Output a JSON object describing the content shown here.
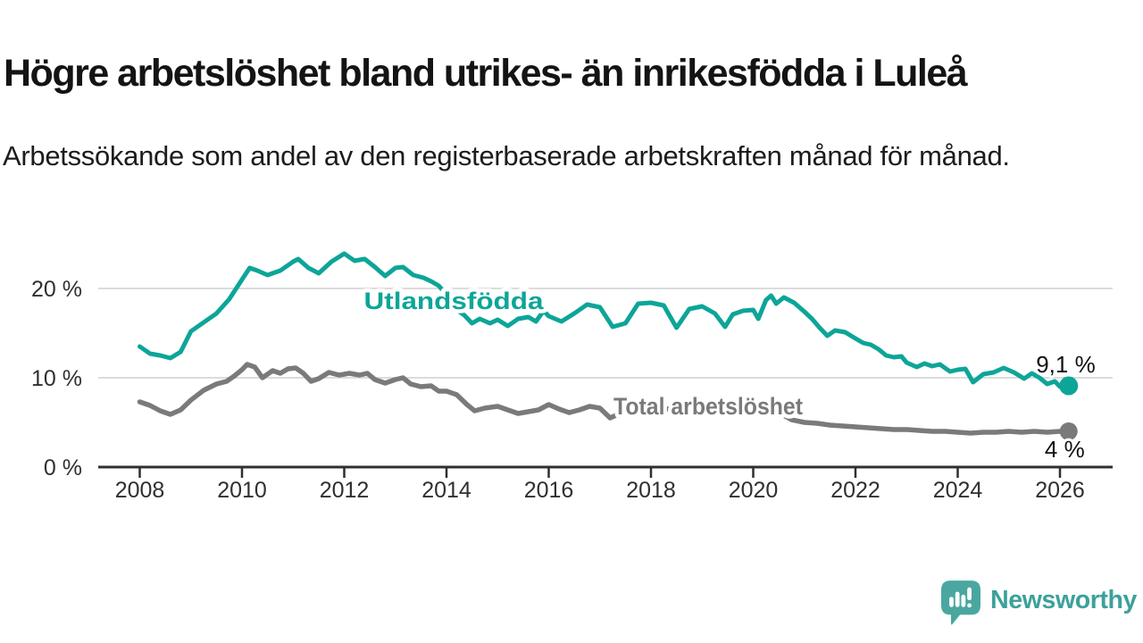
{
  "header": {
    "title": "Högre arbetslöshet bland utrikes- än inrikesfödda i Luleå",
    "subtitle": "Arbetssökande som andel av den registerbaserade arbetskraften månad för månad."
  },
  "chart_data": {
    "type": "line",
    "title": "Högre arbetslöshet bland utrikes- än inrikesfödda i Luleå",
    "subtitle": "Arbetssökande som andel av den registerbaserade arbetskraften månad för månad.",
    "x_unit": "year (monthly observations)",
    "y_unit": "percent of registered labour force",
    "xlim": [
      2007.2,
      2027.0
    ],
    "ylim": [
      0,
      25
    ],
    "grid": "horizontal",
    "legend_position": "inline-labels",
    "axis_color": "#2f2f2f",
    "grid_color": "#dcdcdc",
    "xticks": [
      2008,
      2010,
      2012,
      2014,
      2016,
      2018,
      2020,
      2022,
      2024,
      2026
    ],
    "yticks": [
      {
        "value": 0,
        "label": "0 %"
      },
      {
        "value": 10,
        "label": "10 %"
      },
      {
        "value": 20,
        "label": "20 %"
      }
    ],
    "series": [
      {
        "name": "Utlandsfödda",
        "color": "#0da598",
        "end_label": "9,1 %",
        "end_value": 9.1,
        "points": [
          [
            2008,
            13.5
          ],
          [
            2008.2,
            12.7
          ],
          [
            2008.4,
            12.5
          ],
          [
            2008.6,
            12.2
          ],
          [
            2008.8,
            12.9
          ],
          [
            2009,
            15.2
          ],
          [
            2009.25,
            16.2
          ],
          [
            2009.5,
            17.2
          ],
          [
            2009.75,
            18.8
          ],
          [
            2010,
            21
          ],
          [
            2010.15,
            22.3
          ],
          [
            2010.3,
            22
          ],
          [
            2010.5,
            21.5
          ],
          [
            2010.75,
            22
          ],
          [
            2011,
            23
          ],
          [
            2011.1,
            23.3
          ],
          [
            2011.3,
            22.3
          ],
          [
            2011.5,
            21.7
          ],
          [
            2011.75,
            23
          ],
          [
            2012,
            23.9
          ],
          [
            2012.2,
            23.1
          ],
          [
            2012.4,
            23.3
          ],
          [
            2012.6,
            22.4
          ],
          [
            2012.8,
            21.4
          ],
          [
            2013,
            22.3
          ],
          [
            2013.15,
            22.4
          ],
          [
            2013.35,
            21.5
          ],
          [
            2013.55,
            21.2
          ],
          [
            2013.7,
            20.8
          ],
          [
            2013.85,
            20.3
          ],
          [
            2014,
            19.3
          ],
          [
            2014.2,
            17.6
          ],
          [
            2014.35,
            17
          ],
          [
            2014.5,
            16.1
          ],
          [
            2014.65,
            16.6
          ],
          [
            2014.85,
            16.1
          ],
          [
            2015,
            16.5
          ],
          [
            2015.2,
            15.8
          ],
          [
            2015.4,
            16.6
          ],
          [
            2015.6,
            16.8
          ],
          [
            2015.75,
            16.3
          ],
          [
            2015.9,
            17.5
          ],
          [
            2016,
            16.9
          ],
          [
            2016.25,
            16.3
          ],
          [
            2016.5,
            17.2
          ],
          [
            2016.75,
            18.2
          ],
          [
            2017,
            17.9
          ],
          [
            2017.25,
            15.7
          ],
          [
            2017.5,
            16.1
          ],
          [
            2017.75,
            18.3
          ],
          [
            2018,
            18.4
          ],
          [
            2018.25,
            18.1
          ],
          [
            2018.5,
            15.6
          ],
          [
            2018.75,
            17.7
          ],
          [
            2019,
            18
          ],
          [
            2019.25,
            17.2
          ],
          [
            2019.45,
            15.7
          ],
          [
            2019.6,
            17.1
          ],
          [
            2019.8,
            17.5
          ],
          [
            2020,
            17.6
          ],
          [
            2020.1,
            16.6
          ],
          [
            2020.25,
            18.7
          ],
          [
            2020.35,
            19.2
          ],
          [
            2020.45,
            18.3
          ],
          [
            2020.6,
            19
          ],
          [
            2020.8,
            18.4
          ],
          [
            2021,
            17.4
          ],
          [
            2021.15,
            16.6
          ],
          [
            2021.3,
            15.6
          ],
          [
            2021.45,
            14.7
          ],
          [
            2021.6,
            15.3
          ],
          [
            2021.8,
            15.1
          ],
          [
            2022,
            14.4
          ],
          [
            2022.15,
            13.9
          ],
          [
            2022.3,
            13.7
          ],
          [
            2022.45,
            13.2
          ],
          [
            2022.6,
            12.5
          ],
          [
            2022.75,
            12.3
          ],
          [
            2022.9,
            12.4
          ],
          [
            2023,
            11.7
          ],
          [
            2023.2,
            11.2
          ],
          [
            2023.35,
            11.6
          ],
          [
            2023.5,
            11.3
          ],
          [
            2023.65,
            11.5
          ],
          [
            2023.85,
            10.7
          ],
          [
            2024,
            10.9
          ],
          [
            2024.15,
            11
          ],
          [
            2024.3,
            9.5
          ],
          [
            2024.5,
            10.4
          ],
          [
            2024.7,
            10.6
          ],
          [
            2024.9,
            11.1
          ],
          [
            2025.1,
            10.6
          ],
          [
            2025.3,
            9.9
          ],
          [
            2025.45,
            10.5
          ],
          [
            2025.6,
            10
          ],
          [
            2025.75,
            9.3
          ],
          [
            2025.9,
            9.6
          ],
          [
            2026,
            9
          ],
          [
            2026.17,
            9.1
          ]
        ]
      },
      {
        "name": "Total arbetslöshet",
        "color": "#7a7a7a",
        "end_label": "4 %",
        "end_value": 4.0,
        "points": [
          [
            2008,
            7.3
          ],
          [
            2008.2,
            6.9
          ],
          [
            2008.4,
            6.3
          ],
          [
            2008.6,
            5.9
          ],
          [
            2008.8,
            6.4
          ],
          [
            2009,
            7.5
          ],
          [
            2009.25,
            8.6
          ],
          [
            2009.5,
            9.3
          ],
          [
            2009.7,
            9.6
          ],
          [
            2009.85,
            10.2
          ],
          [
            2010,
            10.9
          ],
          [
            2010.1,
            11.5
          ],
          [
            2010.25,
            11.2
          ],
          [
            2010.4,
            10
          ],
          [
            2010.6,
            10.8
          ],
          [
            2010.75,
            10.5
          ],
          [
            2010.9,
            11
          ],
          [
            2011.05,
            11.1
          ],
          [
            2011.2,
            10.5
          ],
          [
            2011.35,
            9.6
          ],
          [
            2011.5,
            9.9
          ],
          [
            2011.7,
            10.6
          ],
          [
            2011.9,
            10.3
          ],
          [
            2012.1,
            10.5
          ],
          [
            2012.3,
            10.3
          ],
          [
            2012.45,
            10.5
          ],
          [
            2012.6,
            9.8
          ],
          [
            2012.8,
            9.4
          ],
          [
            2013,
            9.8
          ],
          [
            2013.15,
            10
          ],
          [
            2013.3,
            9.3
          ],
          [
            2013.5,
            9
          ],
          [
            2013.7,
            9.1
          ],
          [
            2013.85,
            8.5
          ],
          [
            2014,
            8.5
          ],
          [
            2014.2,
            8.1
          ],
          [
            2014.4,
            7
          ],
          [
            2014.55,
            6.3
          ],
          [
            2014.75,
            6.6
          ],
          [
            2015,
            6.8
          ],
          [
            2015.2,
            6.4
          ],
          [
            2015.4,
            6
          ],
          [
            2015.6,
            6.2
          ],
          [
            2015.8,
            6.4
          ],
          [
            2016,
            7
          ],
          [
            2016.2,
            6.5
          ],
          [
            2016.4,
            6.1
          ],
          [
            2016.6,
            6.4
          ],
          [
            2016.8,
            6.8
          ],
          [
            2017,
            6.6
          ],
          [
            2017.2,
            5.5
          ],
          [
            2017.4,
            6
          ],
          [
            2017.6,
            6.4
          ],
          [
            2017.8,
            6.6
          ],
          [
            2018,
            6.4
          ],
          [
            2018.25,
            6.6
          ],
          [
            2018.5,
            6.3
          ],
          [
            2018.75,
            6.1
          ],
          [
            2019,
            6.3
          ],
          [
            2019.25,
            6.4
          ],
          [
            2019.5,
            6.1
          ],
          [
            2019.75,
            6
          ],
          [
            2020,
            6.2
          ],
          [
            2020.25,
            6.6
          ],
          [
            2020.5,
            6.1
          ],
          [
            2020.75,
            5.3
          ],
          [
            2021,
            5
          ],
          [
            2021.25,
            4.9
          ],
          [
            2021.5,
            4.7
          ],
          [
            2021.75,
            4.6
          ],
          [
            2022,
            4.5
          ],
          [
            2022.25,
            4.4
          ],
          [
            2022.5,
            4.3
          ],
          [
            2022.75,
            4.2
          ],
          [
            2023,
            4.2
          ],
          [
            2023.25,
            4.1
          ],
          [
            2023.5,
            4
          ],
          [
            2023.75,
            4
          ],
          [
            2024,
            3.9
          ],
          [
            2024.25,
            3.8
          ],
          [
            2024.5,
            3.9
          ],
          [
            2024.75,
            3.9
          ],
          [
            2025,
            4
          ],
          [
            2025.25,
            3.9
          ],
          [
            2025.5,
            4
          ],
          [
            2025.75,
            3.9
          ],
          [
            2026,
            4
          ],
          [
            2026.17,
            4
          ]
        ]
      }
    ]
  },
  "logo": {
    "text": "Newsworthy",
    "icon_color": "#4aa7a0",
    "text_color": "#3ca19a"
  }
}
